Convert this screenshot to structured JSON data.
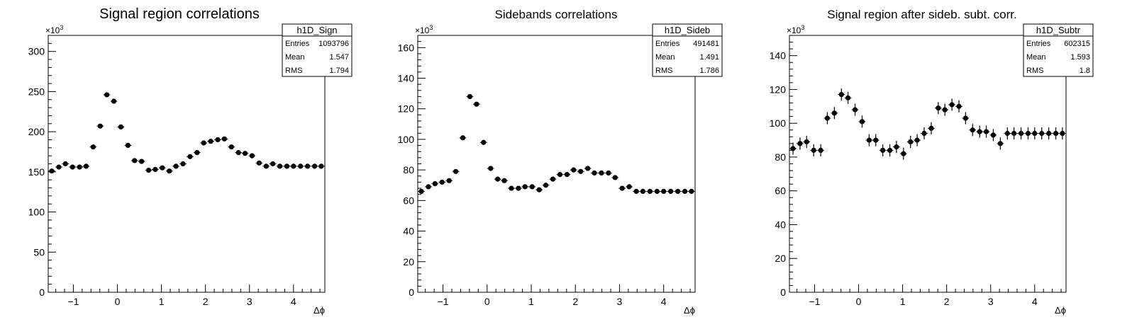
{
  "chart_data": [
    {
      "type": "scatter",
      "title": "Signal region correlations",
      "xlabel": "Δϕ",
      "ylabel": "",
      "y_multiplier_label": "×10",
      "y_multiplier_exp": "3",
      "xlim": [
        -1.571,
        4.712
      ],
      "ylim": [
        0,
        320
      ],
      "xticks": [
        -1,
        0,
        1,
        2,
        3,
        4
      ],
      "yticks": [
        0,
        50,
        100,
        150,
        200,
        250,
        300
      ],
      "stats": {
        "name": "h1D_Sign",
        "rows": [
          [
            "Entries",
            "1093796"
          ],
          [
            "Mean",
            "1.547"
          ],
          [
            "RMS",
            "1.794"
          ]
        ]
      },
      "errors": true,
      "series": [
        {
          "x": [
            -1.49,
            -1.33,
            -1.18,
            -1.02,
            -0.86,
            -0.71,
            -0.55,
            -0.39,
            -0.24,
            -0.08,
            0.08,
            0.24,
            0.39,
            0.55,
            0.71,
            0.86,
            1.02,
            1.18,
            1.33,
            1.49,
            1.65,
            1.81,
            1.96,
            2.12,
            2.28,
            2.43,
            2.59,
            2.75,
            2.9,
            3.06,
            3.22,
            3.38,
            3.53,
            3.69,
            3.85,
            4.0,
            4.16,
            4.32,
            4.48,
            4.63
          ],
          "y": [
            151,
            156,
            160,
            156,
            156,
            157,
            181,
            207,
            246,
            238,
            206,
            183,
            164,
            163,
            152,
            153,
            155,
            151,
            157,
            160,
            169,
            174,
            186,
            188,
            190,
            191,
            181,
            174,
            173,
            170,
            161,
            157,
            160,
            157,
            157,
            157,
            157,
            157,
            157,
            157
          ]
        }
      ]
    },
    {
      "type": "scatter",
      "title": "Sidebands correlations",
      "xlabel": "Δϕ",
      "ylabel": "",
      "y_multiplier_label": "×10",
      "y_multiplier_exp": "3",
      "xlim": [
        -1.571,
        4.712
      ],
      "ylim": [
        0,
        168
      ],
      "xticks": [
        -1,
        0,
        1,
        2,
        3,
        4
      ],
      "yticks": [
        0,
        20,
        40,
        60,
        80,
        100,
        120,
        140,
        160
      ],
      "stats": {
        "name": "h1D_Sideb",
        "rows": [
          [
            "Entries",
            "491481"
          ],
          [
            "Mean",
            "1.491"
          ],
          [
            "RMS",
            "1.786"
          ]
        ]
      },
      "errors": true,
      "series": [
        {
          "x": [
            -1.49,
            -1.33,
            -1.18,
            -1.02,
            -0.86,
            -0.71,
            -0.55,
            -0.39,
            -0.24,
            -0.08,
            0.08,
            0.24,
            0.39,
            0.55,
            0.71,
            0.86,
            1.02,
            1.18,
            1.33,
            1.49,
            1.65,
            1.81,
            1.96,
            2.12,
            2.28,
            2.43,
            2.59,
            2.75,
            2.9,
            3.06,
            3.22,
            3.38,
            3.53,
            3.69,
            3.85,
            4.0,
            4.16,
            4.32,
            4.48,
            4.63
          ],
          "y": [
            66,
            69,
            71,
            72,
            73,
            79,
            101,
            128,
            123,
            98,
            81,
            74,
            73,
            68,
            68,
            69,
            69,
            67,
            70,
            74,
            77,
            77,
            80,
            79,
            81,
            78,
            78,
            78,
            75,
            68,
            69,
            66,
            66,
            66,
            66,
            66,
            66,
            66,
            66,
            66
          ]
        }
      ]
    },
    {
      "type": "scatter",
      "title": "Signal region after sideb. subt. corr.",
      "xlabel": "Δϕ",
      "ylabel": "",
      "y_multiplier_label": "×10",
      "y_multiplier_exp": "3",
      "xlim": [
        -1.571,
        4.712
      ],
      "ylim": [
        0,
        152
      ],
      "xticks": [
        -1,
        0,
        1,
        2,
        3,
        4
      ],
      "yticks": [
        0,
        20,
        40,
        60,
        80,
        100,
        120,
        140
      ],
      "stats": {
        "name": "h1D_Subtr",
        "rows": [
          [
            "Entries",
            "602315"
          ],
          [
            "Mean",
            "1.593"
          ],
          [
            "RMS",
            "1.8"
          ]
        ]
      },
      "errors": true,
      "series": [
        {
          "x": [
            -1.49,
            -1.33,
            -1.18,
            -1.02,
            -0.86,
            -0.71,
            -0.55,
            -0.39,
            -0.24,
            -0.08,
            0.08,
            0.24,
            0.39,
            0.55,
            0.71,
            0.86,
            1.02,
            1.18,
            1.33,
            1.49,
            1.65,
            1.81,
            1.96,
            2.12,
            2.28,
            2.43,
            2.59,
            2.75,
            2.9,
            3.06,
            3.22,
            3.38,
            3.53,
            3.69,
            3.85,
            4.0,
            4.16,
            4.32,
            4.48,
            4.63
          ],
          "y": [
            85,
            88,
            89,
            84,
            84,
            103,
            106,
            117,
            115,
            108,
            101,
            90,
            90,
            84,
            84,
            86,
            82,
            89,
            90,
            94,
            97,
            109,
            108,
            111,
            110,
            103,
            96,
            95,
            95,
            93,
            88,
            94,
            94,
            94,
            94,
            94,
            94,
            94,
            94,
            94
          ]
        }
      ]
    }
  ]
}
